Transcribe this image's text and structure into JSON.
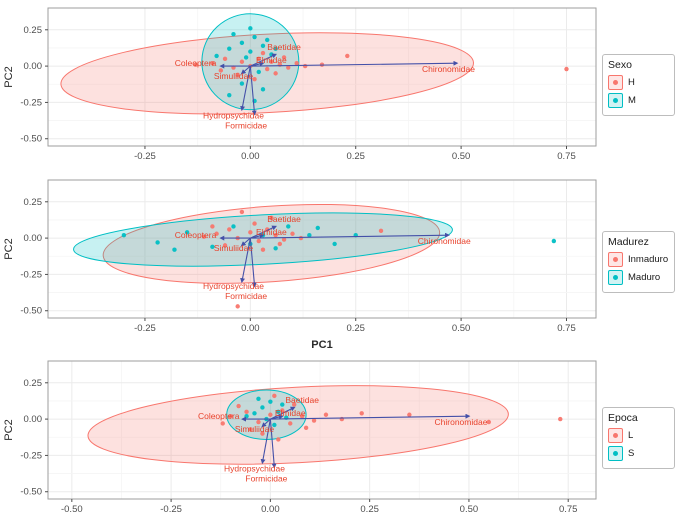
{
  "colors": {
    "group_red": "#F8766D",
    "group_teal": "#00BFC4",
    "arrow": "#4450A8",
    "var_label": "#E8432D",
    "axis_text": "#4D4D4D",
    "axis_title": "#2B2B2B",
    "panel_border": "#9E9E9E",
    "grid": "#EBEBEB",
    "grid_minor": "#F5F5F5"
  },
  "chart_data": [
    {
      "type": "scatter",
      "title": "",
      "xlabel": "",
      "ylabel": "PC2",
      "xlim": [
        -0.48,
        0.82
      ],
      "ylim": [
        -0.55,
        0.4
      ],
      "xticks": [
        -0.25,
        0,
        0.25,
        0.5,
        0.75
      ],
      "yticks": [
        0.25,
        0,
        -0.25,
        -0.5
      ],
      "legend": {
        "title": "Sexo",
        "entries": [
          {
            "label": "H",
            "color": "group_red"
          },
          {
            "label": "M",
            "color": "group_teal"
          }
        ]
      },
      "groups": [
        "group_red",
        "group_teal"
      ],
      "ellipses": [
        {
          "cx": 0.04,
          "cy": -0.05,
          "rx": 0.49,
          "ry": 0.27,
          "angle": -3,
          "color": "group_red"
        },
        {
          "cx": 0.0,
          "cy": 0.03,
          "rx": 0.115,
          "ry": 0.33,
          "angle": 2,
          "color": "group_teal"
        }
      ],
      "points": [
        [
          -0.09,
          0.02,
          0
        ],
        [
          -0.06,
          0.05,
          0
        ],
        [
          -0.04,
          -0.01,
          0
        ],
        [
          -0.02,
          0.03,
          0
        ],
        [
          0.0,
          0.0,
          0
        ],
        [
          0.02,
          0.05,
          0
        ],
        [
          0.04,
          -0.02,
          0
        ],
        [
          0.05,
          0.03,
          0
        ],
        [
          0.07,
          0.01,
          0
        ],
        [
          0.09,
          -0.01,
          0
        ],
        [
          0.11,
          0.02,
          0
        ],
        [
          0.13,
          0.0,
          0
        ],
        [
          -0.03,
          -0.06,
          0
        ],
        [
          0.01,
          -0.09,
          0
        ],
        [
          0.06,
          -0.05,
          0
        ],
        [
          -0.07,
          -0.03,
          0
        ],
        [
          0.03,
          0.09,
          0
        ],
        [
          0.08,
          0.06,
          0
        ],
        [
          0.17,
          0.01,
          0
        ],
        [
          0.23,
          0.07,
          0
        ],
        [
          0.75,
          -0.02,
          0
        ],
        [
          -0.13,
          0.01,
          0
        ],
        [
          -0.05,
          0.12,
          1
        ],
        [
          -0.02,
          0.16,
          1
        ],
        [
          0.01,
          0.2,
          1
        ],
        [
          0.03,
          0.14,
          1
        ],
        [
          0.0,
          0.1,
          1
        ],
        [
          -0.08,
          0.07,
          1
        ],
        [
          0.05,
          0.08,
          1
        ],
        [
          0.02,
          -0.04,
          1
        ],
        [
          -0.01,
          0.06,
          1
        ],
        [
          0.04,
          0.18,
          1
        ],
        [
          -0.04,
          0.22,
          1
        ],
        [
          0.06,
          0.12,
          1
        ],
        [
          0.0,
          0.26,
          1
        ],
        [
          -0.02,
          -0.12,
          1
        ],
        [
          0.03,
          -0.16,
          1
        ],
        [
          -0.05,
          -0.2,
          1
        ],
        [
          0.01,
          -0.24,
          1
        ]
      ],
      "arrows": [
        {
          "name": "Chironomidae",
          "x": 0.49,
          "y": 0.02,
          "label_x": 0.47,
          "label_y": -0.04
        },
        {
          "name": "Baetidae",
          "x": 0.06,
          "y": 0.08,
          "label_x": 0.08,
          "label_y": 0.11
        },
        {
          "name": "Coleoptera",
          "x": -0.07,
          "y": 0.0,
          "label_x": -0.13,
          "label_y": 0.0
        },
        {
          "name": "Elmidae",
          "x": 0.03,
          "y": 0.02,
          "label_x": 0.05,
          "label_y": 0.02
        },
        {
          "name": "Simuliidae",
          "x": -0.02,
          "y": -0.05,
          "label_x": -0.04,
          "label_y": -0.09
        },
        {
          "name": "Hydropsychidae",
          "x": -0.02,
          "y": -0.3,
          "label_x": -0.04,
          "label_y": -0.36
        },
        {
          "name": "Formicidae",
          "x": 0.01,
          "y": -0.33,
          "label_x": -0.01,
          "label_y": -0.43
        }
      ]
    },
    {
      "type": "scatter",
      "title": "",
      "xlabel": "PC1",
      "ylabel": "PC2",
      "xlim": [
        -0.48,
        0.82
      ],
      "ylim": [
        -0.55,
        0.4
      ],
      "xticks": [
        -0.25,
        0,
        0.25,
        0.5,
        0.75
      ],
      "yticks": [
        0.25,
        0,
        -0.25,
        -0.5
      ],
      "legend": {
        "title": "Madurez",
        "entries": [
          {
            "label": "Inmaduro",
            "color": "group_red"
          },
          {
            "label": "Maduro",
            "color": "group_teal"
          }
        ]
      },
      "groups": [
        "group_red",
        "group_teal"
      ],
      "ellipses": [
        {
          "cx": 0.05,
          "cy": -0.04,
          "rx": 0.4,
          "ry": 0.26,
          "angle": -4,
          "color": "group_red"
        },
        {
          "cx": 0.03,
          "cy": -0.01,
          "rx": 0.45,
          "ry": 0.17,
          "angle": -3,
          "color": "group_teal"
        }
      ],
      "points": [
        [
          -0.08,
          0.03,
          0
        ],
        [
          -0.05,
          0.06,
          0
        ],
        [
          -0.03,
          0.0,
          0
        ],
        [
          0.0,
          0.04,
          0
        ],
        [
          0.02,
          -0.02,
          0
        ],
        [
          0.04,
          0.06,
          0
        ],
        [
          0.06,
          0.02,
          0
        ],
        [
          0.08,
          -0.01,
          0
        ],
        [
          0.1,
          0.03,
          0
        ],
        [
          0.31,
          0.05,
          0
        ],
        [
          -0.03,
          -0.47,
          0
        ],
        [
          0.01,
          0.1,
          0
        ],
        [
          -0.06,
          -0.05,
          0
        ],
        [
          0.03,
          -0.08,
          0
        ],
        [
          0.12,
          0.0,
          0
        ],
        [
          -0.11,
          0.01,
          0
        ],
        [
          0.05,
          0.14,
          0
        ],
        [
          -0.02,
          0.18,
          0
        ],
        [
          0.07,
          -0.04,
          0
        ],
        [
          -0.09,
          0.08,
          0
        ],
        [
          -0.3,
          0.02,
          1
        ],
        [
          -0.22,
          -0.03,
          1
        ],
        [
          -0.15,
          0.04,
          1
        ],
        [
          -0.09,
          -0.06,
          1
        ],
        [
          0.0,
          -0.04,
          1
        ],
        [
          0.06,
          -0.07,
          1
        ],
        [
          0.14,
          0.02,
          1
        ],
        [
          0.2,
          -0.04,
          1
        ],
        [
          0.72,
          -0.02,
          1
        ],
        [
          0.03,
          0.02,
          1
        ],
        [
          -0.04,
          0.08,
          1
        ],
        [
          0.09,
          0.08,
          1
        ],
        [
          0.16,
          0.07,
          1
        ],
        [
          -0.18,
          -0.08,
          1
        ],
        [
          0.25,
          0.02,
          1
        ]
      ],
      "arrows": [
        {
          "name": "Chironomidae",
          "x": 0.47,
          "y": 0.02,
          "label_x": 0.46,
          "label_y": -0.04
        },
        {
          "name": "Baetidae",
          "x": 0.06,
          "y": 0.08,
          "label_x": 0.08,
          "label_y": 0.11
        },
        {
          "name": "Coleoptera",
          "x": -0.07,
          "y": 0.0,
          "label_x": -0.13,
          "label_y": 0.0
        },
        {
          "name": "Elmidae",
          "x": 0.03,
          "y": 0.02,
          "label_x": 0.05,
          "label_y": 0.02
        },
        {
          "name": "Simuliidae",
          "x": -0.02,
          "y": -0.05,
          "label_x": -0.04,
          "label_y": -0.09
        },
        {
          "name": "Hydropsychidae",
          "x": -0.02,
          "y": -0.3,
          "label_x": -0.04,
          "label_y": -0.35
        },
        {
          "name": "Formicidae",
          "x": 0.01,
          "y": -0.33,
          "label_x": -0.01,
          "label_y": -0.42
        }
      ]
    },
    {
      "type": "scatter",
      "title": "",
      "xlabel": "",
      "ylabel": "PC2",
      "xlim": [
        -0.56,
        0.82
      ],
      "ylim": [
        -0.55,
        0.4
      ],
      "xticks": [
        -0.5,
        -0.25,
        0,
        0.25,
        0.5,
        0.75
      ],
      "yticks": [
        0.25,
        0,
        -0.25,
        -0.5
      ],
      "legend": {
        "title": "Epoca",
        "entries": [
          {
            "label": "L",
            "color": "group_red"
          },
          {
            "label": "S",
            "color": "group_teal"
          }
        ]
      },
      "groups": [
        "group_red",
        "group_teal"
      ],
      "ellipses": [
        {
          "cx": 0.07,
          "cy": -0.04,
          "rx": 0.53,
          "ry": 0.26,
          "angle": -3,
          "color": "group_red"
        },
        {
          "cx": -0.01,
          "cy": 0.03,
          "rx": 0.1,
          "ry": 0.17,
          "angle": 0,
          "color": "group_teal"
        }
      ],
      "points": [
        [
          -0.1,
          0.02,
          0
        ],
        [
          -0.06,
          0.05,
          0
        ],
        [
          -0.03,
          -0.02,
          0
        ],
        [
          0.0,
          0.03,
          0
        ],
        [
          0.03,
          0.06,
          0
        ],
        [
          0.05,
          -0.03,
          0
        ],
        [
          0.08,
          0.02,
          0
        ],
        [
          0.11,
          -0.01,
          0
        ],
        [
          0.14,
          0.03,
          0
        ],
        [
          0.18,
          0.0,
          0
        ],
        [
          0.23,
          0.04,
          0
        ],
        [
          0.35,
          0.03,
          0
        ],
        [
          0.55,
          -0.02,
          0
        ],
        [
          0.73,
          0.0,
          0
        ],
        [
          -0.02,
          -0.1,
          0
        ],
        [
          0.02,
          -0.14,
          0
        ],
        [
          -0.05,
          -0.07,
          0
        ],
        [
          0.06,
          0.1,
          0
        ],
        [
          -0.08,
          0.09,
          0
        ],
        [
          0.01,
          0.16,
          0
        ],
        [
          -0.12,
          -0.03,
          0
        ],
        [
          0.09,
          -0.06,
          0
        ],
        [
          -0.04,
          0.04,
          1
        ],
        [
          -0.02,
          0.08,
          1
        ],
        [
          0.0,
          0.12,
          1
        ],
        [
          0.02,
          0.05,
          1
        ],
        [
          -0.01,
          0.0,
          1
        ],
        [
          0.03,
          0.1,
          1
        ],
        [
          -0.06,
          0.02,
          1
        ],
        [
          0.01,
          -0.04,
          1
        ],
        [
          -0.03,
          0.14,
          1
        ],
        [
          0.04,
          0.01,
          1
        ]
      ],
      "arrows": [
        {
          "name": "Chironomidae",
          "x": 0.5,
          "y": 0.02,
          "label_x": 0.48,
          "label_y": -0.04
        },
        {
          "name": "Baetidae",
          "x": 0.06,
          "y": 0.08,
          "label_x": 0.08,
          "label_y": 0.11
        },
        {
          "name": "Coleoptera",
          "x": -0.07,
          "y": 0.0,
          "label_x": -0.13,
          "label_y": 0.0
        },
        {
          "name": "Elmidae",
          "x": 0.03,
          "y": 0.02,
          "label_x": 0.05,
          "label_y": 0.02
        },
        {
          "name": "Simuliidae",
          "x": -0.02,
          "y": -0.05,
          "label_x": -0.04,
          "label_y": -0.09
        },
        {
          "name": "Hydropsychidae",
          "x": -0.02,
          "y": -0.3,
          "label_x": -0.04,
          "label_y": -0.36
        },
        {
          "name": "Formicidae",
          "x": 0.01,
          "y": -0.33,
          "label_x": -0.01,
          "label_y": -0.43
        }
      ]
    }
  ]
}
